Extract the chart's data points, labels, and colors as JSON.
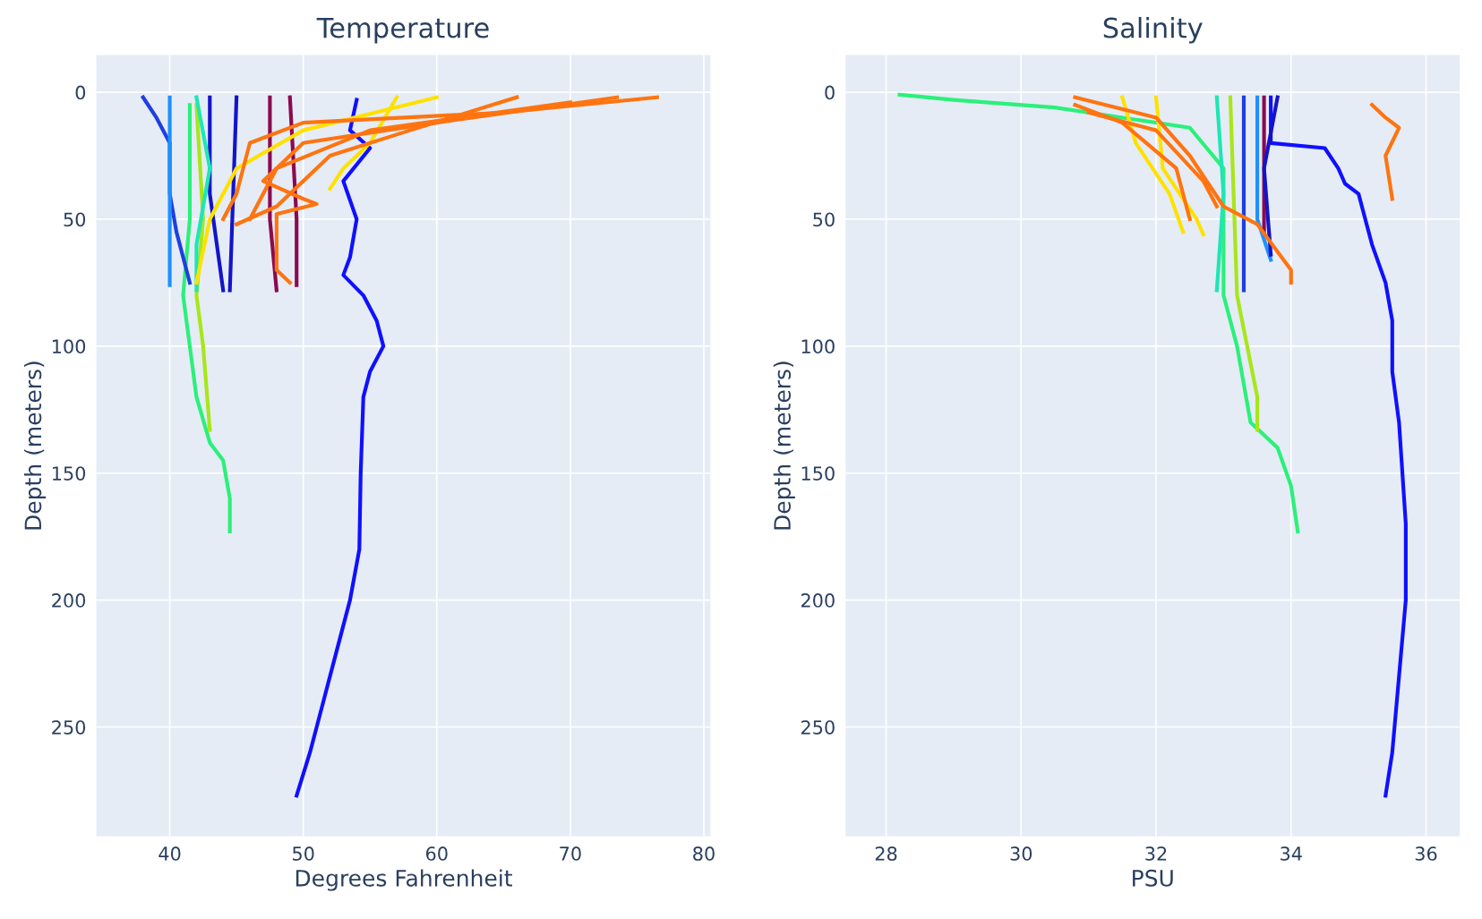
{
  "chart_data": [
    {
      "type": "line",
      "title": "Temperature",
      "xlabel": "Degrees Fahrenheit",
      "ylabel": "Depth (meters)",
      "xlim": [
        34.5,
        80.5
      ],
      "xticks": [
        40,
        50,
        60,
        70,
        80
      ],
      "ylim": [
        293,
        -14.6
      ],
      "yticks": [
        0,
        50,
        100,
        150,
        200,
        250
      ],
      "grid": true,
      "series": [
        {
          "color": "#1010ff",
          "x": [
            54,
            53.5,
            55,
            53,
            54,
            53.5,
            53,
            54.5,
            55.5,
            56,
            55,
            54.5,
            54.3,
            54.2,
            53.5,
            52.5,
            51.5,
            50.5,
            49.5
          ],
          "values": [
            3,
            15,
            22,
            35,
            50,
            65,
            72,
            80,
            90,
            100,
            110,
            120,
            150,
            180,
            200,
            220,
            240,
            260,
            277
          ]
        },
        {
          "color": "#2bf07a",
          "x": [
            41.5,
            41.5,
            41,
            41.5,
            42,
            43,
            44,
            44.5,
            44.5
          ],
          "values": [
            5,
            50,
            80,
            100,
            120,
            138,
            145,
            160,
            173
          ]
        },
        {
          "color": "#a8e61a",
          "x": [
            42,
            42.5,
            42,
            42.5,
            43
          ],
          "values": [
            5,
            50,
            80,
            100,
            133
          ]
        },
        {
          "color": "#1f3fe0",
          "x": [
            38,
            39,
            40,
            40,
            40.5,
            41,
            41.5
          ],
          "values": [
            2,
            10,
            20,
            40,
            55,
            65,
            75
          ]
        },
        {
          "color": "#1e90ff",
          "x": [
            40,
            40
          ],
          "values": [
            2,
            76
          ]
        },
        {
          "color": "#1414c8",
          "x": [
            43,
            43,
            44
          ],
          "values": [
            2,
            40,
            78
          ]
        },
        {
          "color": "#1414c8",
          "x": [
            45,
            44.5
          ],
          "values": [
            2,
            78
          ]
        },
        {
          "color": "#8b0a50",
          "x": [
            47.5,
            47.5,
            48
          ],
          "values": [
            2,
            50,
            78
          ]
        },
        {
          "color": "#8b0a50",
          "x": [
            49,
            49.5,
            49.5
          ],
          "values": [
            2,
            50,
            76
          ]
        },
        {
          "color": "#1ee6b4",
          "x": [
            42,
            43,
            42,
            42
          ],
          "values": [
            2,
            30,
            60,
            78
          ]
        },
        {
          "color": "#ffe100",
          "x": [
            57,
            55,
            53,
            52
          ],
          "values": [
            2,
            20,
            30,
            38
          ]
        },
        {
          "color": "#ffe100",
          "x": [
            60,
            50,
            45,
            43,
            42
          ],
          "values": [
            2,
            15,
            30,
            50,
            75
          ]
        },
        {
          "color": "#ff7410",
          "x": [
            76.5,
            65,
            50,
            46,
            45,
            44
          ],
          "values": [
            2,
            8,
            12,
            20,
            40,
            50
          ]
        },
        {
          "color": "#ff7410",
          "x": [
            73.5,
            60,
            50,
            47,
            50,
            51,
            48,
            48,
            49
          ],
          "values": [
            2,
            12,
            20,
            35,
            42,
            44,
            48,
            70,
            75
          ]
        },
        {
          "color": "#ff7410",
          "x": [
            70,
            55,
            48,
            46
          ],
          "values": [
            4,
            15,
            30,
            50
          ]
        },
        {
          "color": "#ff7410",
          "x": [
            66,
            58,
            52,
            48,
            45
          ],
          "values": [
            2,
            15,
            25,
            45,
            52
          ]
        }
      ]
    },
    {
      "type": "line",
      "title": "Salinity",
      "xlabel": "PSU",
      "ylabel": "Depth (meters)",
      "xlim": [
        27.4,
        36.5
      ],
      "xticks": [
        28,
        30,
        32,
        34,
        36
      ],
      "ylim": [
        293,
        -14.6
      ],
      "yticks": [
        0,
        50,
        100,
        150,
        200,
        250
      ],
      "grid": true,
      "series": [
        {
          "color": "#1010ff",
          "x": [
            33.7,
            33.7,
            34.5,
            34.7,
            34.8,
            35.0,
            35.1,
            35.2,
            35.4,
            35.5,
            35.5,
            35.6,
            35.7,
            35.7,
            35.6,
            35.5,
            35.4
          ],
          "values": [
            2,
            20,
            22,
            30,
            36,
            40,
            50,
            60,
            75,
            90,
            110,
            130,
            170,
            200,
            230,
            260,
            277
          ]
        },
        {
          "color": "#2bf07a",
          "x": [
            28.2,
            29,
            30.5,
            31,
            32.5,
            33,
            33,
            33.2,
            33.4,
            33.8,
            34,
            34.1
          ],
          "values": [
            1,
            3,
            6,
            8,
            14,
            30,
            80,
            100,
            130,
            140,
            155,
            173
          ]
        },
        {
          "color": "#a8e61a",
          "x": [
            33.1,
            33.2,
            33.5,
            33.5
          ],
          "values": [
            2,
            80,
            120,
            133
          ]
        },
        {
          "color": "#1f3fe0",
          "x": [
            33.3,
            33.3
          ],
          "values": [
            2,
            78
          ]
        },
        {
          "color": "#1e90ff",
          "x": [
            33.5,
            33.5,
            33.7
          ],
          "values": [
            2,
            50,
            66
          ]
        },
        {
          "color": "#8b0a50",
          "x": [
            33.6,
            33.6
          ],
          "values": [
            2,
            55
          ]
        },
        {
          "color": "#1414c8",
          "x": [
            33.8,
            33.6,
            33.7
          ],
          "values": [
            2,
            30,
            64
          ]
        },
        {
          "color": "#1ee6b4",
          "x": [
            32.9,
            33.0,
            32.9
          ],
          "values": [
            2,
            40,
            78
          ]
        },
        {
          "color": "#ffe100",
          "x": [
            31.5,
            31.7,
            32.2,
            32.4
          ],
          "values": [
            2,
            20,
            40,
            55
          ]
        },
        {
          "color": "#ffe100",
          "x": [
            32.0,
            32.1,
            32.6,
            32.7
          ],
          "values": [
            2,
            30,
            50,
            56
          ]
        },
        {
          "color": "#ff7410",
          "x": [
            35.2,
            35.4,
            35.6,
            35.4,
            35.5
          ],
          "values": [
            5,
            10,
            14,
            25,
            42
          ]
        },
        {
          "color": "#ff7410",
          "x": [
            30.8,
            32,
            32.5,
            33,
            33.5,
            34,
            34
          ],
          "values": [
            2,
            10,
            25,
            45,
            52,
            70,
            75
          ]
        },
        {
          "color": "#ff7410",
          "x": [
            30.8,
            31.5,
            32.3,
            32.5
          ],
          "values": [
            5,
            12,
            30,
            50
          ]
        },
        {
          "color": "#ff7410",
          "x": [
            31,
            32,
            32.7,
            32.9
          ],
          "values": [
            8,
            15,
            35,
            45
          ]
        }
      ]
    }
  ]
}
